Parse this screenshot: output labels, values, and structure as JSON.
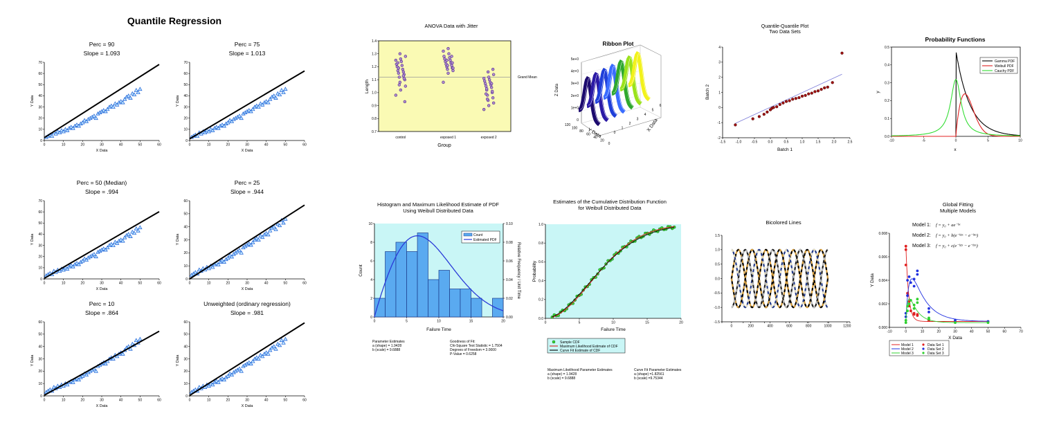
{
  "chart_data": [
    {
      "id": "quantile",
      "type": "scatter",
      "title": "Quantile Regression",
      "xlabel": "X Data",
      "ylabel": "Y Data",
      "xlim": [
        0,
        60
      ],
      "x_ticks": [
        "0",
        "10",
        "20",
        "30",
        "40",
        "50",
        "60"
      ],
      "points_x": [
        1,
        2,
        3,
        4,
        5,
        6,
        7,
        8,
        9,
        10,
        11,
        12,
        13,
        14,
        15,
        16,
        17,
        18,
        19,
        20,
        21,
        22,
        23,
        24,
        25,
        26,
        27,
        28,
        29,
        30,
        31,
        32,
        33,
        34,
        35,
        36,
        37,
        38,
        39,
        40,
        41,
        42,
        43,
        44,
        45,
        46,
        47,
        48,
        49,
        50
      ],
      "points_y": [
        3,
        4,
        5,
        4,
        7,
        6,
        8,
        7,
        9,
        8,
        10,
        9,
        11,
        12,
        11,
        13,
        14,
        13,
        15,
        16,
        18,
        17,
        19,
        20,
        21,
        22,
        20,
        24,
        25,
        26,
        27,
        26,
        28,
        30,
        31,
        30,
        33,
        32,
        34,
        35,
        34,
        37,
        39,
        40,
        38,
        42,
        41,
        45,
        43,
        46
      ],
      "panels": [
        {
          "title": "Perc = 90",
          "slope": "Slope = 1.093",
          "ylim": [
            0,
            70
          ],
          "y_ticks": [
            "0",
            "10",
            "20",
            "30",
            "40",
            "50",
            "60",
            "70"
          ],
          "intercept": 2.5,
          "slope_value": 1.093
        },
        {
          "title": "Perc = 75",
          "slope": "Slope = 1.013",
          "ylim": [
            0,
            70
          ],
          "y_ticks": [
            "0",
            "10",
            "20",
            "30",
            "40",
            "50",
            "60",
            "70"
          ],
          "intercept": 1.5,
          "slope_value": 1.013
        },
        {
          "title": "Perc = 50 (Median)",
          "slope": "Slope = .994",
          "ylim": [
            0,
            70
          ],
          "y_ticks": [
            "0",
            "10",
            "20",
            "30",
            "40",
            "50",
            "60",
            "70"
          ],
          "intercept": 0.5,
          "slope_value": 0.994
        },
        {
          "title": "Perc = 25",
          "slope": "Slope = .944",
          "ylim": [
            0,
            60
          ],
          "y_ticks": [
            "0",
            "10",
            "20",
            "30",
            "40",
            "50",
            "60"
          ],
          "intercept": 0.0,
          "slope_value": 0.944
        },
        {
          "title": "Perc = 10",
          "slope": "Slope = .864",
          "ylim": [
            0,
            60
          ],
          "y_ticks": [
            "0",
            "10",
            "20",
            "30",
            "40",
            "50",
            "60"
          ],
          "intercept": 0.5,
          "slope_value": 0.864
        },
        {
          "title": "Unweighted (ordinary regression)",
          "slope": "Slope = .981",
          "ylim": [
            0,
            60
          ],
          "y_ticks": [
            "0",
            "10",
            "20",
            "30",
            "40",
            "50",
            "60"
          ],
          "intercept": 0.3,
          "slope_value": 0.981
        }
      ]
    },
    {
      "id": "anova",
      "type": "scatter",
      "title": "ANOVA Data with Jitter",
      "xlabel": "Group",
      "ylabel": "Length",
      "categories": [
        "control",
        "exposed 1",
        "exposed 2"
      ],
      "ylim": [
        0.7,
        1.4
      ],
      "y_ticks": [
        "0.7",
        "0.8",
        "0.9",
        "1.0",
        "1.1",
        "1.2",
        "1.3",
        "1.4"
      ],
      "reference_label": "Grand Mean",
      "reference_value": 1.12,
      "series": [
        {
          "name": "control",
          "values": [
            0.98,
            1.02,
            1.05,
            1.08,
            1.1,
            1.12,
            1.14,
            1.15,
            1.16,
            1.17,
            1.18,
            1.2,
            1.21,
            1.22,
            1.24,
            1.25,
            1.26,
            1.28,
            1.3,
            0.93,
            1.06,
            1.11,
            1.19,
            1.13,
            1.23
          ]
        },
        {
          "name": "exposed 1",
          "values": [
            1.08,
            1.15,
            1.17,
            1.18,
            1.19,
            1.2,
            1.21,
            1.22,
            1.23,
            1.24,
            1.25,
            1.26,
            1.27,
            1.28,
            1.3,
            1.32,
            1.34,
            1.19,
            1.21,
            1.23,
            1.25,
            1.28
          ]
        },
        {
          "name": "exposed 2",
          "values": [
            0.87,
            0.9,
            0.92,
            0.94,
            0.96,
            0.98,
            1.0,
            1.02,
            1.04,
            1.05,
            1.06,
            1.07,
            1.08,
            1.09,
            1.1,
            1.11,
            1.12,
            1.14,
            1.16,
            1.18,
            0.95,
            1.01,
            1.03,
            1.07,
            0.99
          ]
        }
      ]
    },
    {
      "id": "ribbon",
      "type": "area",
      "title": "Ribbon Plot",
      "xlabel": "X Data",
      "ylabel": "Y Data",
      "zlabel": "Z Data",
      "z_ticks": [
        "0",
        "1e+0",
        "2e+0",
        "3e+0",
        "4e+0",
        "5e+0"
      ],
      "y_ticks": [
        "120",
        "100",
        "80",
        "60",
        "40",
        "20",
        "0"
      ],
      "x_ticks": [
        "0",
        "1",
        "2",
        "3",
        "4",
        "5",
        "6"
      ],
      "colors": [
        "#1c0a6e",
        "#2b1aa5",
        "#1f3fd9",
        "#3a6cff",
        "#2ea82e",
        "#9be21c",
        "#f2f21c"
      ]
    },
    {
      "id": "qq",
      "type": "scatter",
      "title": "Quantile-Quantile Plot\nTwo Data Sets",
      "title_lines": [
        "Quantile-Quantile Plot",
        "Two Data Sets"
      ],
      "xlabel": "Batch 1",
      "ylabel": "Batch 2",
      "xlim": [
        -1.5,
        2.5
      ],
      "ylim": [
        -2,
        4
      ],
      "x_ticks": [
        "-1.5",
        "-1.0",
        "-0.5",
        "0.0",
        "0.5",
        "1.0",
        "1.5",
        "2.0",
        "2.5"
      ],
      "y_ticks": [
        "-2",
        "-1",
        "0",
        "1",
        "2",
        "3",
        "4"
      ],
      "x": [
        -1.1,
        -0.55,
        -0.35,
        -0.2,
        -0.1,
        0.0,
        0.05,
        0.1,
        0.2,
        0.3,
        0.4,
        0.5,
        0.6,
        0.7,
        0.8,
        0.9,
        1.0,
        1.1,
        1.2,
        1.3,
        1.4,
        1.5,
        1.6,
        1.7,
        1.8,
        1.95,
        2.25
      ],
      "y": [
        -1.15,
        -0.75,
        -0.6,
        -0.45,
        -0.3,
        -0.15,
        -0.05,
        0.0,
        0.05,
        0.2,
        0.3,
        0.4,
        0.45,
        0.55,
        0.6,
        0.65,
        0.75,
        0.8,
        0.9,
        0.95,
        1.05,
        1.1,
        1.2,
        1.3,
        1.35,
        1.65,
        3.6
      ],
      "fit_line": [
        [
          -1.1,
          -1.05
        ],
        [
          2.25,
          2.2
        ]
      ]
    },
    {
      "id": "prob",
      "type": "line",
      "title": "Probability Functions",
      "xlabel": "x",
      "ylabel": "y",
      "xlim": [
        -10,
        10
      ],
      "ylim": [
        0,
        0.5
      ],
      "x_ticks": [
        "-10",
        "-5",
        "0",
        "5",
        "10"
      ],
      "y_ticks": [
        "0.0",
        "0.1",
        "0.2",
        "0.3",
        "0.4",
        "0.5"
      ],
      "series": [
        {
          "name": "Gamma PDF",
          "color": "#000000"
        },
        {
          "name": "Weibull PDF",
          "color": "#e02020"
        },
        {
          "name": "Cauchy PDF",
          "color": "#33dd33"
        }
      ]
    },
    {
      "id": "hist",
      "type": "bar",
      "title_lines": [
        "Histogram and Maximum Likelihood Estimate of PDF",
        "Using Weibull Distributed Data"
      ],
      "xlabel": "Failure Time",
      "ylabel": "Count",
      "y2label": "Relative Frequency / Unit Time",
      "xlim": [
        0,
        20
      ],
      "ylim": [
        0,
        10
      ],
      "y2lim": [
        0,
        0.1
      ],
      "x_ticks": [
        "0",
        "5",
        "10",
        "15",
        "20"
      ],
      "y_ticks": [
        "0",
        "2",
        "4",
        "6",
        "8",
        "10"
      ],
      "y2_ticks": [
        "0.00",
        "0.02",
        "0.04",
        "0.06",
        "0.08",
        "0.10"
      ],
      "bin_edges": [
        0,
        1.67,
        3.33,
        5,
        6.67,
        8.33,
        10,
        11.67,
        13.33,
        15,
        16.67,
        18.33,
        20
      ],
      "values": [
        2,
        7,
        8,
        7,
        9,
        4,
        5,
        3,
        3,
        2,
        0,
        2
      ],
      "legend": [
        "Count",
        "Estimated PDF"
      ],
      "notes_left": [
        "Parameter Estimates",
        "a (shape) = 1.9428",
        "b (scale) = 9.6888"
      ],
      "notes_right": [
        "Goodness of Fit:",
        "Chi-Square Test Statistic = 1.7504",
        "Degrees of Freedom = 3.0000",
        "P-Value = 0.6258"
      ]
    },
    {
      "id": "cdf",
      "type": "scatter",
      "title_lines": [
        "Estimates of the Cumulative Distribution Function",
        "for Weibull Distributed Data"
      ],
      "xlabel": "Failure Time",
      "ylabel": "Probability",
      "xlim": [
        0,
        20
      ],
      "ylim": [
        0,
        1
      ],
      "x_ticks": [
        "0",
        "5",
        "10",
        "15",
        "20"
      ],
      "y_ticks": [
        "0.0",
        "0.2",
        "0.4",
        "0.6",
        "0.8",
        "1.0"
      ],
      "legend": [
        "Sample CDF",
        "Maximum Likelihood Estimate of CDF",
        "Curve Fit Estimate of CDF"
      ],
      "notes_left": [
        "Maximum Likelihood Parameter Estimates",
        "a (shape) = 1.9428",
        "b (scale)  = 9.6888"
      ],
      "notes_right": [
        "Curve Fit Parameter Estimates",
        "a (shape) =1.82561",
        "b (scale)  =9.75344"
      ]
    },
    {
      "id": "bicolored",
      "type": "line",
      "title": "Bicolored Lines",
      "xlim": [
        -100,
        1230
      ],
      "ylim": [
        -1.5,
        1.5
      ],
      "x_ticks": [
        "0",
        "200",
        "400",
        "600",
        "800",
        "1000",
        "1200"
      ],
      "y_ticks": [
        "-1.5",
        "-1.0",
        "-0.5",
        "0.0",
        "0.5",
        "1.0",
        "1.5"
      ]
    },
    {
      "id": "global",
      "type": "scatter",
      "title_lines": [
        "Global Fitting",
        "Multiple Models"
      ],
      "models": [
        "Model 1:",
        "Model 2:",
        "Model 3:"
      ],
      "equations": [
        "f = y₀ + ae⁻ᵇˣ",
        "f = y₀ + b(e⁻ᵇ²ˣ − e⁻ᵇ¹ˣ)",
        "f = y₀ + c(e⁻ᵇ²ˣ − e⁻ᵇ¹ˣ)"
      ],
      "xlabel": "X Data",
      "ylabel": "Y Data",
      "xlim": [
        -10,
        70
      ],
      "ylim": [
        0,
        0.008
      ],
      "x_ticks": [
        "-10",
        "0",
        "10",
        "20",
        "30",
        "40",
        "50",
        "60",
        "70"
      ],
      "y_ticks": [
        "0.000",
        "0.002",
        "0.004",
        "0.006",
        "0.008"
      ],
      "legend_models": [
        "Model 1",
        "Model 2",
        "Model 3"
      ],
      "legend_sets": [
        "Data Set 1",
        "Data Set 2",
        "Data Set 3"
      ],
      "series": [
        {
          "name": "Data Set 1",
          "color": "#e02020",
          "x": [
            0,
            0,
            0,
            1,
            1,
            2,
            2,
            3,
            5,
            5,
            7,
            7,
            14,
            14,
            30,
            50
          ],
          "y": [
            0.0069,
            0.0066,
            0.0053,
            0.0029,
            0.0027,
            0.0022,
            0.0018,
            0.0014,
            0.0012,
            0.0011,
            0.0011,
            0.001,
            0.0006,
            0.0006,
            0.0005,
            0.0005
          ]
        },
        {
          "name": "Data Set 2",
          "color": "#2030e0",
          "x": [
            0,
            0,
            1,
            1,
            2,
            3,
            5,
            5,
            7,
            7,
            14,
            14,
            30,
            50
          ],
          "y": [
            0.0009,
            0.0012,
            0.0027,
            0.004,
            0.0043,
            0.0038,
            0.0041,
            0.0035,
            0.0048,
            0.0045,
            0.0016,
            0.0013,
            0.0006,
            0.0005
          ]
        },
        {
          "name": "Data Set 3",
          "color": "#30d030",
          "x": [
            0,
            0,
            1,
            1,
            2,
            3,
            5,
            5,
            7,
            7,
            14,
            14,
            30,
            50
          ],
          "y": [
            0.0004,
            0.0006,
            0.0014,
            0.0018,
            0.002,
            0.0023,
            0.0019,
            0.0016,
            0.0024,
            0.0021,
            0.0008,
            0.0007,
            0.0004,
            0.0004
          ]
        }
      ]
    }
  ]
}
